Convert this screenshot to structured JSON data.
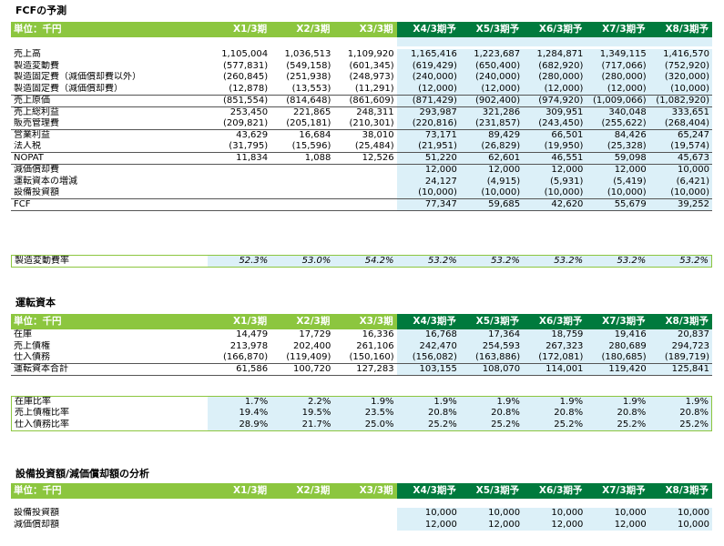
{
  "fcf": {
    "title": "FCFの予測",
    "unit": "単位：千円",
    "headers": [
      "X1/3期",
      "X2/3期",
      "X3/3期",
      "X4/3期予",
      "X5/3期予",
      "X6/3期予",
      "X7/3期予",
      "X8/3期予"
    ],
    "rows": [
      {
        "label": "売上高",
        "v": [
          "1,105,004",
          "1,036,513",
          "1,109,920",
          "1,165,416",
          "1,223,687",
          "1,284,871",
          "1,349,115",
          "1,416,570"
        ]
      },
      {
        "label": "製造変動費",
        "v": [
          "(577,831)",
          "(549,158)",
          "(601,345)",
          "(619,429)",
          "(650,400)",
          "(682,920)",
          "(717,066)",
          "(752,920)"
        ]
      },
      {
        "label": "製造固定費（減価償却費以外）",
        "v": [
          "(260,845)",
          "(251,938)",
          "(248,973)",
          "(240,000)",
          "(240,000)",
          "(280,000)",
          "(280,000)",
          "(320,000)"
        ]
      },
      {
        "label": "製造固定費（減価償却費）",
        "v": [
          "(12,878)",
          "(13,553)",
          "(11,291)",
          "(12,000)",
          "(12,000)",
          "(12,000)",
          "(12,000)",
          "(10,000)"
        ]
      },
      {
        "label": "売上原価",
        "v": [
          "(851,554)",
          "(814,648)",
          "(861,609)",
          "(871,429)",
          "(902,400)",
          "(974,920)",
          "(1,009,066)",
          "(1,082,920)"
        ]
      },
      {
        "label": "売上総利益",
        "v": [
          "253,450",
          "221,865",
          "248,311",
          "293,987",
          "321,286",
          "309,951",
          "340,048",
          "333,651"
        ]
      },
      {
        "label": "販売管理費",
        "v": [
          "(209,821)",
          "(205,181)",
          "(210,301)",
          "(220,816)",
          "(231,857)",
          "(243,450)",
          "(255,622)",
          "(268,404)"
        ]
      },
      {
        "label": "営業利益",
        "v": [
          "43,629",
          "16,684",
          "38,010",
          "73,171",
          "89,429",
          "66,501",
          "84,426",
          "65,247"
        ]
      },
      {
        "label": "法人税",
        "v": [
          "(31,795)",
          "(15,596)",
          "(25,484)",
          "(21,951)",
          "(26,829)",
          "(19,950)",
          "(25,328)",
          "(19,574)"
        ]
      },
      {
        "label": "NOPAT",
        "v": [
          "11,834",
          "1,088",
          "12,526",
          "51,220",
          "62,601",
          "46,551",
          "59,098",
          "45,673"
        ]
      },
      {
        "label": "減価償却費",
        "v": [
          "",
          "",
          "",
          "12,000",
          "12,000",
          "12,000",
          "12,000",
          "10,000"
        ]
      },
      {
        "label": "運転資本の増減",
        "v": [
          "",
          "",
          "",
          "24,127",
          "(4,915)",
          "(5,931)",
          "(5,419)",
          "(6,421)"
        ]
      },
      {
        "label": "設備投資額",
        "v": [
          "",
          "",
          "",
          "(10,000)",
          "(10,000)",
          "(10,000)",
          "(10,000)",
          "(10,000)"
        ]
      },
      {
        "label": "FCF",
        "v": [
          "",
          "",
          "",
          "77,347",
          "59,685",
          "42,620",
          "55,679",
          "39,252"
        ]
      }
    ],
    "rate": {
      "label": "製造変動費率",
      "v": [
        "52.3%",
        "53.0%",
        "54.2%",
        "53.2%",
        "53.2%",
        "53.2%",
        "53.2%",
        "53.2%"
      ]
    }
  },
  "wc": {
    "title": "運転資本",
    "unit": "単位：千円",
    "headers": [
      "X1/3期",
      "X2/3期",
      "X3/3期",
      "X4/3期予",
      "X5/3期予",
      "X6/3期予",
      "X7/3期予",
      "X8/3期予"
    ],
    "rows": [
      {
        "label": "在庫",
        "v": [
          "14,479",
          "17,729",
          "16,336",
          "16,768",
          "17,364",
          "18,759",
          "19,416",
          "20,837"
        ]
      },
      {
        "label": "売上債権",
        "v": [
          "213,978",
          "202,400",
          "261,106",
          "242,470",
          "254,593",
          "267,323",
          "280,689",
          "294,723"
        ]
      },
      {
        "label": "仕入債務",
        "v": [
          "(166,870)",
          "(119,409)",
          "(150,160)",
          "(156,082)",
          "(163,886)",
          "(172,081)",
          "(180,685)",
          "(189,719)"
        ]
      },
      {
        "label": "運転資本合計",
        "v": [
          "61,586",
          "100,720",
          "127,283",
          "103,155",
          "108,070",
          "114,001",
          "119,420",
          "125,841"
        ]
      }
    ],
    "ratios": [
      {
        "label": "在庫比率",
        "v": [
          "1.7%",
          "2.2%",
          "1.9%",
          "1.9%",
          "1.9%",
          "1.9%",
          "1.9%",
          "1.9%"
        ]
      },
      {
        "label": "売上債権比率",
        "v": [
          "19.4%",
          "19.5%",
          "23.5%",
          "20.8%",
          "20.8%",
          "20.8%",
          "20.8%",
          "20.8%"
        ]
      },
      {
        "label": "仕入債務比率",
        "v": [
          "28.9%",
          "21.7%",
          "25.0%",
          "25.2%",
          "25.2%",
          "25.2%",
          "25.2%",
          "25.2%"
        ]
      }
    ]
  },
  "capex": {
    "title": "設備投資額/減価償却額の分析",
    "unit": "単位：千円",
    "headers": [
      "X1/3期",
      "X2/3期",
      "X3/3期",
      "X4/3期予",
      "X5/3期予",
      "X6/3期予",
      "X7/3期予",
      "X8/3期予"
    ],
    "rows": [
      {
        "label": "設備投資額",
        "v": [
          "",
          "",
          "",
          "10,000",
          "10,000",
          "10,000",
          "10,000",
          "10,000"
        ]
      },
      {
        "label": "減価償却額",
        "v": [
          "",
          "",
          "",
          "12,000",
          "12,000",
          "12,000",
          "12,000",
          "10,000"
        ]
      }
    ]
  }
}
